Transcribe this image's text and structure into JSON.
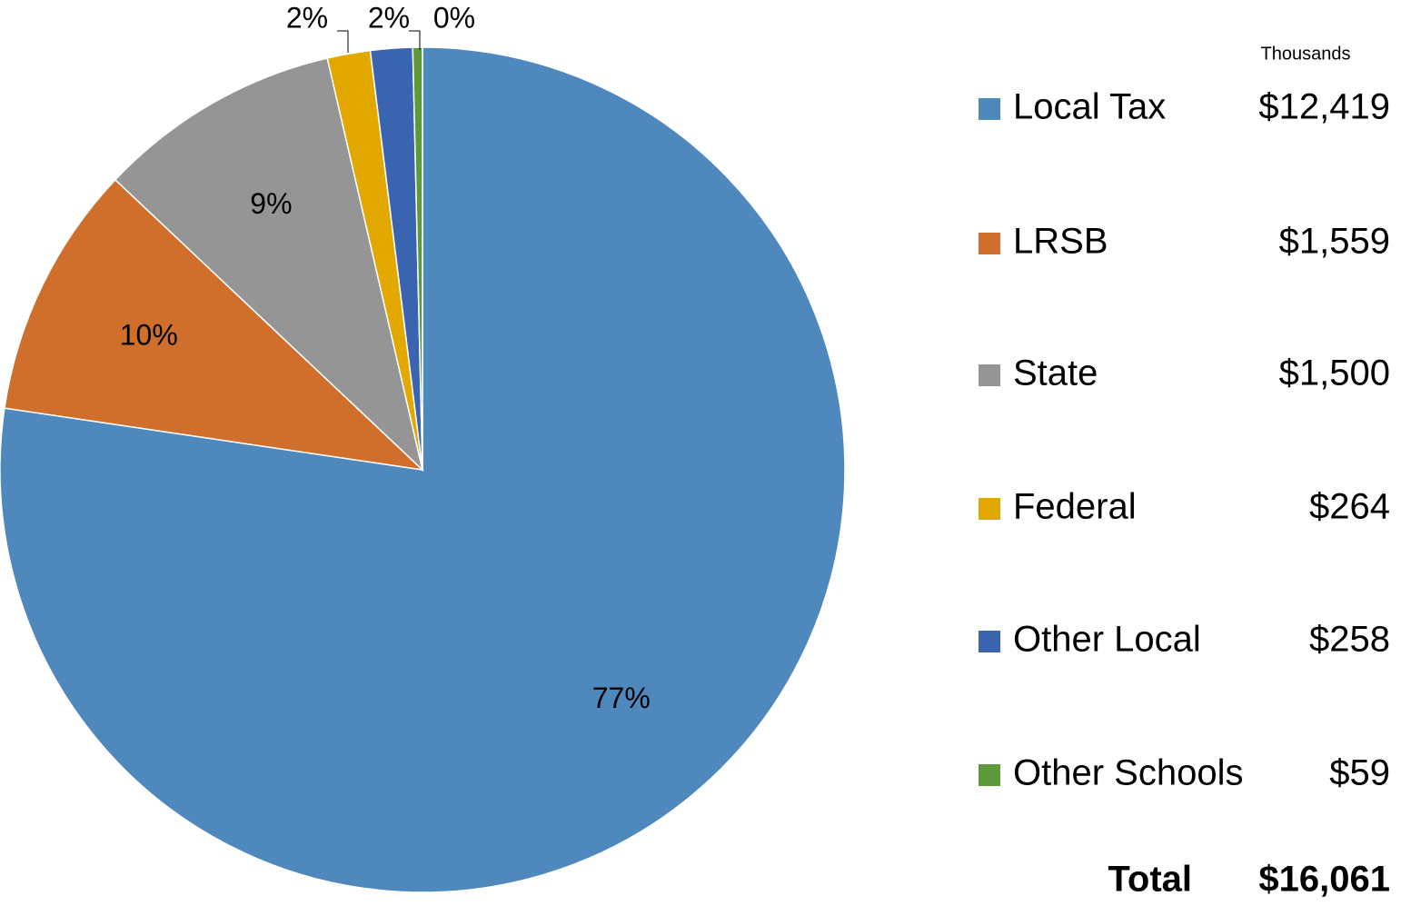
{
  "chart_data": {
    "type": "pie",
    "categories": [
      "Local Tax",
      "LRSB",
      "State",
      "Federal",
      "Other Local",
      "Other Schools"
    ],
    "values": [
      12419,
      1559,
      1500,
      264,
      258,
      59
    ],
    "value_labels": [
      "$12,419",
      "$1,559",
      "$1,500",
      "$264",
      "$258",
      "$59"
    ],
    "pct_labels": [
      "77%",
      "10%",
      "9%",
      "2%",
      "2%",
      "0%"
    ],
    "colors": [
      "#4f88bd",
      "#d06f2b",
      "#959595",
      "#e3a800",
      "#3a64b0",
      "#5e9a3a"
    ],
    "units_note": "Thousands",
    "total_label": "Total",
    "total_value_label": "$16,061",
    "legend": "right"
  }
}
